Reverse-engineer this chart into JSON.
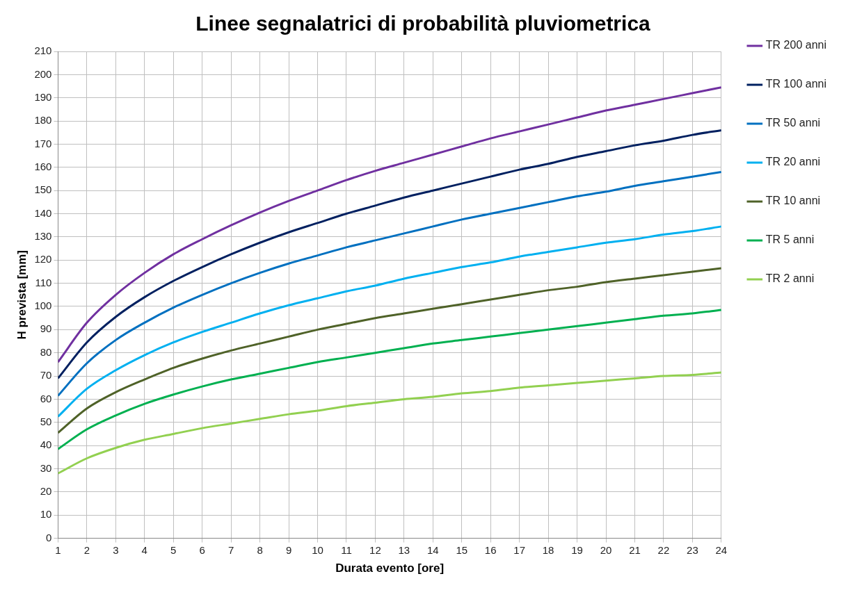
{
  "chart_data": {
    "type": "line",
    "title": "Linee segnalatrici di probabilità pluviometrica",
    "xlabel": "Durata evento [ore]",
    "ylabel": "H prevista [mm]",
    "x": [
      1,
      2,
      3,
      4,
      5,
      6,
      7,
      8,
      9,
      10,
      11,
      12,
      13,
      14,
      15,
      16,
      17,
      18,
      19,
      20,
      21,
      22,
      23,
      24
    ],
    "xlim": [
      1,
      24
    ],
    "xticks": [
      1,
      2,
      3,
      4,
      5,
      6,
      7,
      8,
      9,
      10,
      11,
      12,
      13,
      14,
      15,
      16,
      17,
      18,
      19,
      20,
      21,
      22,
      23,
      24
    ],
    "ylim": [
      0,
      210
    ],
    "yticks": [
      0,
      10,
      20,
      30,
      40,
      50,
      60,
      70,
      80,
      90,
      100,
      110,
      120,
      130,
      140,
      150,
      160,
      170,
      180,
      190,
      200,
      210
    ],
    "grid": true,
    "legend": "right",
    "marker": "none",
    "line_style": "solid",
    "series": [
      {
        "name": "TR 200 anni",
        "color": "#7030a0",
        "values": [
          76,
          93,
          105,
          114.5,
          122.5,
          129,
          135,
          140.5,
          145.5,
          150,
          154.5,
          158.5,
          162,
          165.5,
          169,
          172.5,
          175.5,
          178.5,
          181.5,
          184.5,
          187,
          189.5,
          192,
          194.5
        ]
      },
      {
        "name": "TR 100 anni",
        "color": "#002060",
        "values": [
          69,
          84.5,
          95.5,
          104,
          111,
          117,
          122.5,
          127.5,
          132,
          136,
          140,
          143.5,
          147,
          150,
          153,
          156,
          159,
          161.5,
          164.5,
          167,
          169.5,
          171.5,
          174,
          176
        ]
      },
      {
        "name": "TR 50 anni",
        "color": "#0070c0",
        "values": [
          61.5,
          75.5,
          85.5,
          93,
          99.5,
          105,
          110,
          114.5,
          118.5,
          122,
          125.5,
          128.5,
          131.5,
          134.5,
          137.5,
          140,
          142.5,
          145,
          147.5,
          149.5,
          152,
          154,
          156,
          158
        ]
      },
      {
        "name": "TR 20 anni",
        "color": "#00b0f0",
        "values": [
          52.5,
          64.5,
          72.5,
          79,
          84.5,
          89,
          93,
          97,
          100.5,
          103.5,
          106.5,
          109,
          112,
          114.5,
          117,
          119,
          121.5,
          123.5,
          125.5,
          127.5,
          129,
          131,
          132.5,
          134.5
        ]
      },
      {
        "name": "TR 10 anni",
        "color": "#4f6228",
        "values": [
          45.5,
          56,
          63,
          68.5,
          73.5,
          77.5,
          81,
          84,
          87,
          90,
          92.5,
          95,
          97,
          99,
          101,
          103,
          105,
          107,
          108.5,
          110.5,
          112,
          113.5,
          115,
          116.5
        ]
      },
      {
        "name": "TR 5 anni",
        "color": "#00b050",
        "values": [
          38.5,
          47,
          53,
          58,
          62,
          65.5,
          68.5,
          71,
          73.5,
          76,
          78,
          80,
          82,
          84,
          85.5,
          87,
          88.5,
          90,
          91.5,
          93,
          94.5,
          96,
          97,
          98.5
        ]
      },
      {
        "name": "TR 2 anni",
        "color": "#92d050",
        "values": [
          28,
          34.5,
          39,
          42.5,
          45,
          47.5,
          49.5,
          51.5,
          53.5,
          55,
          57,
          58.5,
          60,
          61,
          62.5,
          63.5,
          65,
          66,
          67,
          68,
          69,
          70,
          70.5,
          71.5
        ]
      }
    ]
  }
}
